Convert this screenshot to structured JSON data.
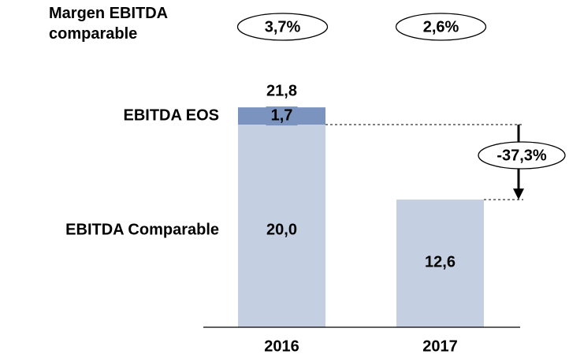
{
  "chart_data": {
    "type": "stacked_bar",
    "categories": [
      "2016",
      "2017"
    ],
    "series": [
      {
        "name": "EBITDA Comparable",
        "color": "#c5cfe2",
        "values": [
          20.0,
          12.6
        ],
        "value_labels": [
          "20,0",
          "12,6"
        ]
      },
      {
        "name": "EBITDA EOS",
        "color": "#7b93bf",
        "values": [
          1.7,
          null
        ],
        "value_labels": [
          "1,7",
          null
        ]
      }
    ],
    "totals": [
      21.8,
      null
    ],
    "total_labels": [
      "21,8",
      null
    ],
    "margin_title": "Margen EBITDA comparable",
    "margins": [
      {
        "value": 3.7,
        "label": "3,7%"
      },
      {
        "value": 2.6,
        "label": "2,6%"
      }
    ],
    "change": {
      "value": -37.3,
      "label": "-37,3%"
    }
  }
}
